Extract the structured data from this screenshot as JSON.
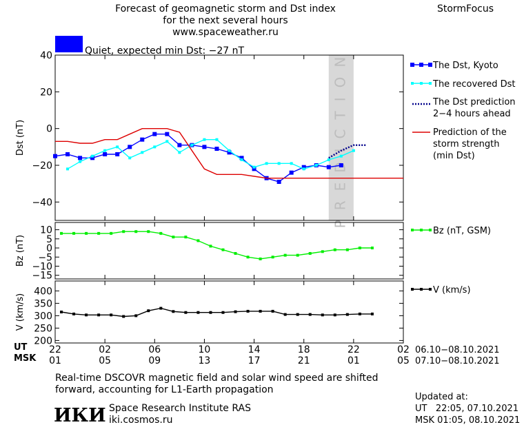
{
  "header": {
    "title_lines": [
      "Forecast of geomagnetic storm and Dst index",
      "for the next several hours",
      "www.spaceweather.ru"
    ],
    "brand": "StormFocus",
    "status_text": "Quiet, expected min Dst: −27 nT",
    "status_color": "#0000ff"
  },
  "footer": {
    "note_lines": [
      "Real-time DSCOVR magnetic field and solar wind speed are shifted",
      "forward, accounting for L1-Earth propagation"
    ],
    "institute": "Space Research Institute RAS",
    "site": "iki.cosmos.ru",
    "logo_text": "ИКИ",
    "updated_label": "Updated at:",
    "updated_ut": "UT   22:05, 07.10.2021",
    "updated_msk": "MSK 01:05, 08.10.2021"
  },
  "colors": {
    "dst": "#0000ff",
    "recovered": "#00ffff",
    "prediction": "#00008b",
    "storm": "#dd0000",
    "bz": "#00ee00",
    "v": "#000000",
    "prediction_band": "#d8d8d8"
  },
  "chart_data": [
    {
      "type": "line",
      "ylabel": "Dst (nT)",
      "ylim": [
        -50,
        40
      ],
      "yticks": [
        "40",
        "20",
        "0",
        "−20",
        "−40"
      ],
      "ytick_values": [
        40,
        20,
        0,
        -20,
        -40
      ],
      "band_label": "PREDICTION",
      "band_x": [
        22,
        24
      ],
      "x_ticks_ut": [
        "22",
        "02",
        "06",
        "10",
        "14",
        "18",
        "22",
        "02"
      ],
      "x_ticks_msk": [
        "01",
        "05",
        "09",
        "13",
        "17",
        "21",
        "01",
        "05"
      ],
      "x_range_ut": "06.10−08.10.2021",
      "x_range_msk": "07.10−08.10.2021",
      "series": [
        {
          "name": "The Dst, Kyoto",
          "key": "dst",
          "x": [
            0,
            1,
            2,
            3,
            4,
            5,
            6,
            7,
            8,
            9,
            10,
            11,
            12,
            13,
            14,
            15,
            16,
            17,
            18,
            19,
            20,
            21,
            22,
            23
          ],
          "y": [
            -15,
            -14,
            -16,
            -16,
            -14,
            -14,
            -10,
            -6,
            -3,
            -3,
            -9,
            -9,
            -10,
            -11,
            -13,
            -16,
            -22,
            -27,
            -29,
            -24,
            -21,
            -20,
            -21,
            -20
          ]
        },
        {
          "name": "The recovered Dst",
          "key": "recovered",
          "x": [
            1,
            2,
            3,
            4,
            5,
            6,
            7,
            8,
            9,
            10,
            11,
            12,
            13,
            14,
            15,
            16,
            17,
            18,
            19,
            20,
            21,
            22,
            23,
            24
          ],
          "y": [
            -22,
            -18,
            -15,
            -12,
            -10,
            -16,
            -13,
            -10,
            -7,
            -13,
            -9,
            -6,
            -6,
            -12,
            -17,
            -21,
            -19,
            -19,
            -19,
            -22,
            -20,
            -17,
            -15,
            -12
          ]
        },
        {
          "name": "The Dst prediction",
          "name_line2": "2−4 hours ahead",
          "key": "prediction",
          "x": [
            22,
            23,
            24,
            25
          ],
          "y": [
            -16,
            -12,
            -9,
            -9
          ]
        },
        {
          "name": "Prediction of the",
          "name_line2": "storm strength",
          "name_line3": "(min Dst)",
          "key": "storm",
          "x": [
            0,
            1,
            2,
            3,
            4,
            5,
            6,
            7,
            8,
            9,
            10,
            11,
            12,
            13,
            14,
            15,
            16,
            17,
            18,
            19,
            20,
            21,
            22,
            23,
            24,
            25,
            26,
            27,
            28
          ],
          "y": [
            -7,
            -7,
            -8,
            -8,
            -6,
            -6,
            -3,
            0,
            0,
            0,
            -2,
            -12,
            -22,
            -25,
            -25,
            -25,
            -26,
            -27,
            -27,
            -27,
            -27,
            -27,
            -27,
            -27,
            -27,
            -27,
            -27,
            -27,
            -27
          ]
        }
      ]
    },
    {
      "type": "line",
      "ylabel": "Bz (nT)",
      "ylim": [
        -17,
        14
      ],
      "yticks": [
        "10",
        "5",
        "0",
        "−5",
        "−10",
        "−15"
      ],
      "ytick_values": [
        10,
        5,
        0,
        -5,
        -10,
        -15
      ],
      "series": [
        {
          "name": "Bz (nT, GSM)",
          "key": "bz",
          "x": [
            0.5,
            1.5,
            2.5,
            3.5,
            4.5,
            5.5,
            6.5,
            7.5,
            8.5,
            9.5,
            10.5,
            11.5,
            12.5,
            13.5,
            14.5,
            15.5,
            16.5,
            17.5,
            18.5,
            19.5,
            20.5,
            21.5,
            22.5,
            23.5,
            24.5,
            25.5
          ],
          "y": [
            8,
            8,
            8,
            8,
            8,
            9,
            9,
            9,
            8,
            6,
            6,
            4,
            1,
            -1,
            -3,
            -5,
            -6,
            -5,
            -4,
            -4,
            -3,
            -2,
            -1,
            -1,
            0,
            0
          ]
        }
      ]
    },
    {
      "type": "line",
      "ylabel": "V (km/s)",
      "ylim": [
        190,
        440
      ],
      "yticks": [
        "400",
        "350",
        "300",
        "250",
        "200"
      ],
      "ytick_values": [
        400,
        350,
        300,
        250,
        200
      ],
      "series": [
        {
          "name": "V (km/s)",
          "key": "v",
          "x": [
            0.5,
            1.5,
            2.5,
            3.5,
            4.5,
            5.5,
            6.5,
            7.5,
            8.5,
            9.5,
            10.5,
            11.5,
            12.5,
            13.5,
            14.5,
            15.5,
            16.5,
            17.5,
            18.5,
            19.5,
            20.5,
            21.5,
            22.5,
            23.5,
            24.5,
            25.5
          ],
          "y": [
            315,
            307,
            303,
            303,
            303,
            297,
            300,
            320,
            330,
            317,
            313,
            313,
            313,
            313,
            316,
            318,
            318,
            318,
            305,
            305,
            305,
            303,
            303,
            305,
            307,
            307
          ]
        }
      ]
    }
  ]
}
